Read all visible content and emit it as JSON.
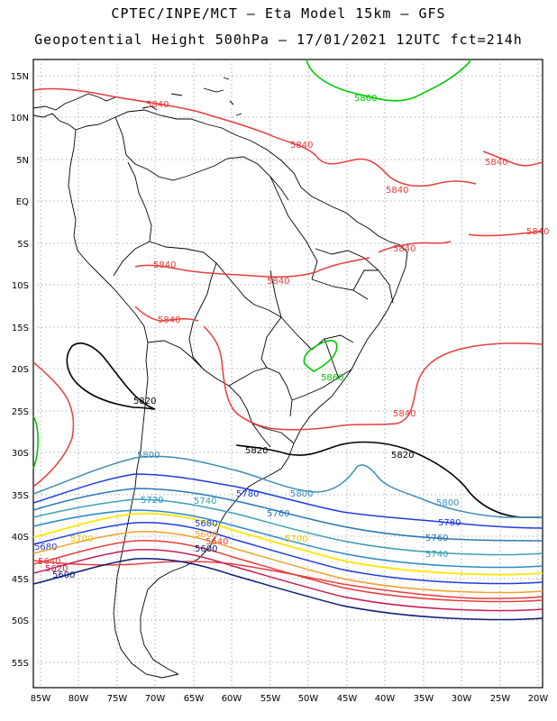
{
  "title_line1": "CPTEC/INPE/MCT –  Eta Model 15km – GFS",
  "title_line2": "Geopotential Height 500hPa – 17/01/2021 12UTC fct=214h",
  "lat_labels": [
    "15N",
    "10N",
    "5N",
    "EQ",
    "5S",
    "10S",
    "15S",
    "20S",
    "25S",
    "30S",
    "35S",
    "40S",
    "45S",
    "50S",
    "55S"
  ],
  "lon_labels": [
    "85W",
    "80W",
    "75W",
    "70W",
    "65W",
    "60W",
    "55W",
    "50W",
    "45W",
    "40W",
    "35W",
    "30W",
    "25W",
    "20W"
  ],
  "contour_labels": {
    "c5860": "5860",
    "c5840": "5840",
    "c5820": "5820",
    "c5800": "5800",
    "c5780": "5780",
    "c5760": "5760",
    "c5740": "5740",
    "c5720": "5720",
    "c5700": "5700",
    "c5680": "5680",
    "c5660": "5660",
    "c5640": "5640",
    "c5620": "5620",
    "c5600": "5600"
  },
  "contour_colors": {
    "c5860": "#00c800",
    "c5840": "#e83c3c",
    "c5820": "#000000",
    "c5800": "#3c8cb4",
    "c5780": "#1e3cdc",
    "c5760": "#2878b4",
    "c5740": "#3ca0b4",
    "c5720": "#2c8cc8",
    "c5700": "#ffe600",
    "c5680": "#1e3cdc",
    "c5660": "#f0a028",
    "c5640": "#e83c3c",
    "c5620": "#c81e50",
    "c5600": "#0a1e78"
  }
}
